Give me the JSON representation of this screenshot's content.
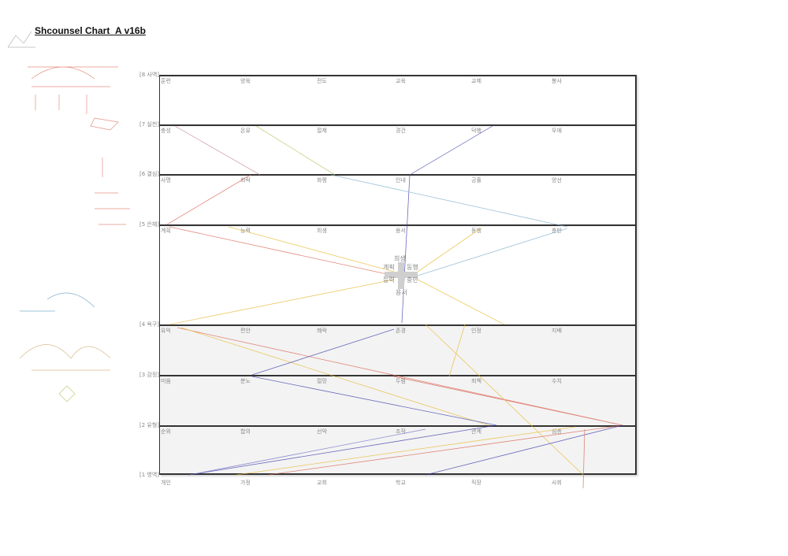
{
  "title": "Shcounsel Chart_A v16b",
  "rows": [
    {
      "label": "[8 사역]",
      "items": [
        "훈련",
        "양육",
        "전도",
        "교육",
        "교제",
        "봉사"
      ]
    },
    {
      "label": "[7 실천]",
      "items": [
        "충성",
        "온유",
        "절제",
        "경건",
        "덕행",
        "우애"
      ]
    },
    {
      "label": "[6 결심]",
      "items": [
        "사명",
        "희락",
        "화평",
        "인내",
        "긍휼",
        "양선"
      ]
    },
    {
      "label": "[5 은혜]",
      "items": [
        "계획",
        "능력",
        "희생",
        "용서",
        "동행",
        "충만"
      ]
    },
    {
      "label": "[4 욕구]",
      "items": [
        "유익",
        "편안",
        "쾌락",
        "존경",
        "인정",
        "지배"
      ]
    },
    {
      "label": "[3 감정]",
      "items": [
        "미움",
        "분노",
        "절망",
        "두렴",
        "죄책",
        "수치"
      ]
    },
    {
      "label": "[2 유형]",
      "items": [
        "순위",
        "합의",
        "선악",
        "조작",
        "관계",
        "심층"
      ]
    },
    {
      "label": "[1 영역]",
      "items": [
        "개인",
        "가정",
        "교회",
        "학교",
        "직장",
        "사회"
      ]
    }
  ],
  "center_cross": {
    "top": "희생",
    "left_top": "계획",
    "right_top": "동행",
    "left_bottom": "능력",
    "right_bottom": "충만",
    "bottom": "용서"
  },
  "colors": {
    "red": "#d9614f",
    "blue": "#3a3aa8",
    "yellow": "#e8b82a",
    "green": "#9bbb3a",
    "teal": "#4a90b8",
    "band_shade": "#f3f3f3"
  }
}
